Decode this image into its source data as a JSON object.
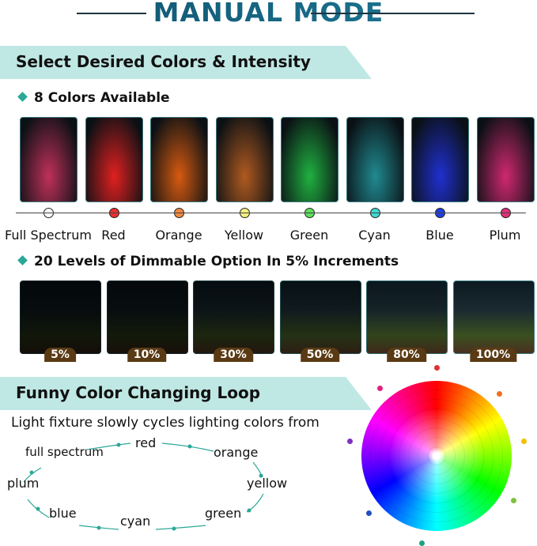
{
  "title": "MANUAL MODE",
  "section1": {
    "banner": "Select Desired Colors & Intensity",
    "colors_heading": "8 Colors Available",
    "colors": [
      {
        "label": "Full Spectrum",
        "dot": "#ffffff",
        "tint": "#c0305a"
      },
      {
        "label": "Red",
        "dot": "#e83030",
        "tint": "#e02020"
      },
      {
        "label": "Orange",
        "dot": "#f08a40",
        "tint": "#d65a10"
      },
      {
        "label": "Yellow",
        "dot": "#f4ee80",
        "tint": "#b05a20"
      },
      {
        "label": "Green",
        "dot": "#5ee05e",
        "tint": "#20b040"
      },
      {
        "label": "Cyan",
        "dot": "#40d8d0",
        "tint": "#208a90"
      },
      {
        "label": "Blue",
        "dot": "#2040e0",
        "tint": "#2030d0"
      },
      {
        "label": "Plum",
        "dot": "#e0307a",
        "tint": "#d02870"
      }
    ],
    "dimming_heading": "20 Levels of Dimmable Option In 5% Increments",
    "levels": [
      {
        "label": "5%",
        "brightness": 0.05
      },
      {
        "label": "10%",
        "brightness": 0.1
      },
      {
        "label": "30%",
        "brightness": 0.3
      },
      {
        "label": "50%",
        "brightness": 0.5
      },
      {
        "label": "80%",
        "brightness": 0.8
      },
      {
        "label": "100%",
        "brightness": 1.0
      }
    ]
  },
  "section2": {
    "banner": "Funny Color Changing Loop",
    "description": "Light fixture slowly cycles lighting colors from",
    "loop": [
      "full spectrum",
      "red",
      "orange",
      "yellow",
      "green",
      "cyan",
      "blue",
      "plum"
    ]
  },
  "accent": "#2aa897"
}
